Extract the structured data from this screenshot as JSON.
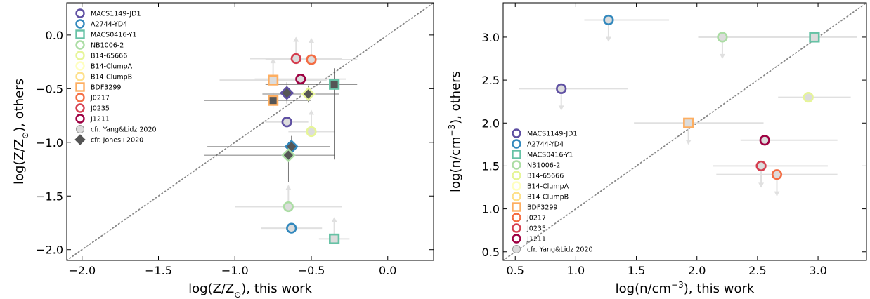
{
  "series_styles": [
    {
      "name": "MACS1149-JD1",
      "color": "#5e4fa2",
      "marker": "circle"
    },
    {
      "name": "A2744-YD4",
      "color": "#3288bd",
      "marker": "circle"
    },
    {
      "name": "MACS0416-Y1",
      "color": "#66c2a5",
      "marker": "square"
    },
    {
      "name": "NB1006-2",
      "color": "#abdda4",
      "marker": "circle"
    },
    {
      "name": "B14-65666",
      "color": "#e6f598",
      "marker": "circle"
    },
    {
      "name": "B14-ClumpA",
      "color": "#ffffbf",
      "marker": "circle"
    },
    {
      "name": "B14-ClumpB",
      "color": "#fee08b",
      "marker": "circle"
    },
    {
      "name": "BDF3299",
      "color": "#fdae61",
      "marker": "square"
    },
    {
      "name": "J0217",
      "color": "#f46d43",
      "marker": "circle"
    },
    {
      "name": "J0235",
      "color": "#d53e4f",
      "marker": "circle"
    },
    {
      "name": "J1211",
      "color": "#9e0142",
      "marker": "circle"
    }
  ],
  "chart_data": [
    {
      "type": "scatter",
      "xlabel_main": "log(Z/Z",
      "xlabel_sub": "⊙",
      "xlabel_tail": "), this work",
      "ylabel_main": "log(Z/Z",
      "ylabel_sub": "⊙",
      "ylabel_tail": "), others",
      "xlim": [
        -2.1,
        0.3
      ],
      "ylim": [
        -2.1,
        0.3
      ],
      "xticks": [
        -2.0,
        -1.5,
        -1.0,
        -0.5,
        0.0
      ],
      "xtick_labels": [
        "−2.0",
        "−1.5",
        "−1.0",
        "−0.5",
        "0.0"
      ],
      "yticks": [
        -2.0,
        -1.5,
        -1.0,
        -0.5,
        0.0
      ],
      "ytick_labels": [
        "−2.0",
        "−1.5",
        "−1.0",
        "−0.5",
        "0.0"
      ],
      "one_to_one_line": true,
      "legend_placement": "upper-left",
      "legend": [
        {
          "label": "MACS1149-JD1",
          "color": "#5e4fa2",
          "marker": "circle"
        },
        {
          "label": "A2744-YD4",
          "color": "#3288bd",
          "marker": "circle"
        },
        {
          "label": "MACS0416-Y1",
          "color": "#66c2a5",
          "marker": "square"
        },
        {
          "label": "NB1006-2",
          "color": "#abdda4",
          "marker": "circle"
        },
        {
          "label": "B14-65666",
          "color": "#e6f598",
          "marker": "circle"
        },
        {
          "label": "B14-ClumpA",
          "color": "#ffffbf",
          "marker": "circle"
        },
        {
          "label": "B14-ClumpB",
          "color": "#fee08b",
          "marker": "circle"
        },
        {
          "label": "BDF3299",
          "color": "#fdae61",
          "marker": "square"
        },
        {
          "label": "J0217",
          "color": "#f46d43",
          "marker": "circle"
        },
        {
          "label": "J0235",
          "color": "#d53e4f",
          "marker": "circle"
        },
        {
          "label": "J1211",
          "color": "#9e0142",
          "marker": "circle"
        },
        {
          "label": "cfr. Yang&Lidz 2020",
          "color": "#d3d3d3",
          "marker": "circle"
        },
        {
          "label": "cfr. Jones+2020",
          "color": "#555555",
          "marker": "diamond"
        }
      ],
      "yang_lidz_points": [
        {
          "series": "MACS1149-JD1",
          "x": -0.66,
          "y": -0.81,
          "xerr": [
            0.14,
            0.14
          ],
          "arrow": "none"
        },
        {
          "series": "A2744-YD4",
          "x": -0.63,
          "y": -1.8,
          "xerr": [
            0.2,
            0.2
          ],
          "arrow": "none"
        },
        {
          "series": "MACS0416-Y1",
          "x": -0.35,
          "y": -1.9,
          "xerr": [
            0.1,
            0.1
          ],
          "arrow": "up"
        },
        {
          "series": "NB1006-2",
          "x": -0.65,
          "y": -1.6,
          "xerr": [
            0.35,
            0.35
          ],
          "arrow": "up"
        },
        {
          "series": "B14-65666",
          "x": -0.5,
          "y": -0.9,
          "xerr": [
            0.15,
            0.15
          ],
          "arrow": "up"
        },
        {
          "series": "BDF3299",
          "x": -0.75,
          "y": -0.42,
          "xerr": [
            0.35,
            0.35
          ],
          "arrow": "up"
        },
        {
          "series": "J0217",
          "x": -0.5,
          "y": -0.23,
          "xerr": [
            0.3,
            0.3
          ],
          "arrow": "up"
        },
        {
          "series": "J0235",
          "x": -0.6,
          "y": -0.22,
          "xerr": [
            0.3,
            0.3
          ],
          "arrow": "up"
        },
        {
          "series": "J1211",
          "x": -0.57,
          "y": -0.41,
          "xerr": [
            0.3,
            0.3
          ],
          "arrow": "none"
        }
      ],
      "jones_points": [
        {
          "series": "MACS1149-JD1",
          "x": -0.66,
          "y": -0.54,
          "xerr": [
            0.55,
            0.55
          ],
          "yerr": [
            0.1,
            0.1
          ]
        },
        {
          "series": "A2744-YD4",
          "x": -0.63,
          "y": -1.04,
          "xerr": [
            0.55,
            0.25
          ],
          "yerr": [
            0.1,
            0.1
          ]
        },
        {
          "series": "MACS0416-Y1",
          "x": -0.35,
          "y": -0.46,
          "xerr": [
            0.45,
            0.15
          ],
          "yerr": [
            0.7,
            0.15
          ]
        },
        {
          "series": "NB1006-2",
          "x": -0.65,
          "y": -1.12,
          "xerr": [
            0.55,
            0.3
          ],
          "yerr": [
            0.25,
            0.12
          ]
        },
        {
          "series": "B14-65666",
          "x": -0.52,
          "y": -0.55,
          "xerr": [
            0.3,
            0.2
          ],
          "yerr": [
            0.08,
            0.08
          ]
        },
        {
          "series": "BDF3299",
          "x": -0.75,
          "y": -0.61,
          "xerr": [
            0.45,
            0.25
          ],
          "yerr": [
            0.08,
            0.08
          ]
        }
      ]
    },
    {
      "type": "scatter",
      "xlabel_main": "log(n/cm",
      "xlabel_sup": "−3",
      "xlabel_tail": "), this work",
      "ylabel_main": "log(n/cm",
      "ylabel_sup": "−3",
      "ylabel_tail": "), others",
      "xlim": [
        0.4,
        3.4
      ],
      "ylim": [
        0.4,
        3.4
      ],
      "xticks": [
        0.5,
        1.0,
        1.5,
        2.0,
        2.5,
        3.0
      ],
      "xtick_labels": [
        "0.5",
        "1.0",
        "1.5",
        "2.0",
        "2.5",
        "3.0"
      ],
      "yticks": [
        0.5,
        1.0,
        1.5,
        2.0,
        2.5,
        3.0
      ],
      "ytick_labels": [
        "0.5",
        "1.0",
        "1.5",
        "2.0",
        "2.5",
        "3.0"
      ],
      "one_to_one_line": true,
      "legend_placement": "lower-left",
      "legend": [
        {
          "label": "MACS1149-JD1",
          "color": "#5e4fa2",
          "marker": "circle"
        },
        {
          "label": "A2744-YD4",
          "color": "#3288bd",
          "marker": "circle"
        },
        {
          "label": "MACS0416-Y1",
          "color": "#66c2a5",
          "marker": "square"
        },
        {
          "label": "NB1006-2",
          "color": "#abdda4",
          "marker": "circle"
        },
        {
          "label": "B14-65666",
          "color": "#e6f598",
          "marker": "circle"
        },
        {
          "label": "B14-ClumpA",
          "color": "#ffffbf",
          "marker": "circle"
        },
        {
          "label": "B14-ClumpB",
          "color": "#fee08b",
          "marker": "circle"
        },
        {
          "label": "BDF3299",
          "color": "#fdae61",
          "marker": "square"
        },
        {
          "label": "J0217",
          "color": "#f46d43",
          "marker": "circle"
        },
        {
          "label": "J0235",
          "color": "#d53e4f",
          "marker": "circle"
        },
        {
          "label": "J1211",
          "color": "#9e0142",
          "marker": "circle"
        },
        {
          "label": "cfr. Yang&Lidz 2020",
          "color": "#d3d3d3",
          "marker": "circle"
        }
      ],
      "yang_lidz_points": [
        {
          "series": "MACS1149-JD1",
          "x": 0.88,
          "y": 2.4,
          "xerr": [
            0.35,
            0.55
          ],
          "arrow": "down"
        },
        {
          "series": "A2744-YD4",
          "x": 1.27,
          "y": 3.2,
          "xerr": [
            0.2,
            0.5
          ],
          "arrow": "down"
        },
        {
          "series": "MACS0416-Y1",
          "x": 2.97,
          "y": 3.0,
          "xerr": [
            0.95,
            0.35
          ],
          "arrow": "none"
        },
        {
          "series": "NB1006-2",
          "x": 2.21,
          "y": 3.0,
          "xerr": [
            0.2,
            0.75
          ],
          "arrow": "down"
        },
        {
          "series": "B14-65666",
          "x": 2.92,
          "y": 2.3,
          "xerr": [
            0.25,
            0.35
          ],
          "arrow": "none"
        },
        {
          "series": "BDF3299",
          "x": 1.93,
          "y": 2.0,
          "xerr": [
            0.45,
            0.62
          ],
          "arrow": "down"
        },
        {
          "series": "J0217",
          "x": 2.66,
          "y": 1.4,
          "xerr": [
            0.5,
            0.5
          ],
          "arrow": "down"
        },
        {
          "series": "J0235",
          "x": 2.53,
          "y": 1.5,
          "xerr": [
            0.4,
            0.55
          ],
          "arrow": "down"
        },
        {
          "series": "J1211",
          "x": 2.56,
          "y": 1.8,
          "xerr": [
            0.2,
            0.6
          ],
          "arrow": "none"
        }
      ]
    }
  ]
}
